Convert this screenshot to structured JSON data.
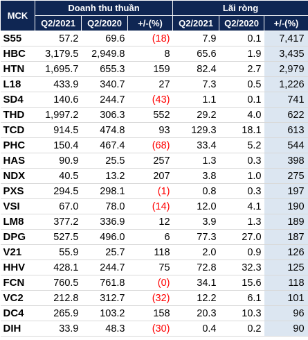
{
  "header": {
    "mck": "MCK",
    "group_revenue": "Doanh thu thuần",
    "group_profit": "Lãi ròng",
    "sub": [
      "Q2/2021",
      "Q2/2020",
      "+/-(%)",
      "Q2/2021",
      "Q2/2020",
      "+/-(%)"
    ]
  },
  "colors": {
    "header_bg": "#0f2653",
    "header_text": "#ffffff",
    "negative": "#ff0000",
    "highlight_col": "#dce6f1"
  },
  "rows": [
    {
      "mck": "S55",
      "rev_2021": "57.2",
      "rev_2020": "69.6",
      "rev_chg": "(18)",
      "rev_neg": true,
      "np_2021": "7.9",
      "np_2020": "0.1",
      "np_chg": "7,417"
    },
    {
      "mck": "HBC",
      "rev_2021": "3,179.5",
      "rev_2020": "2,949.8",
      "rev_chg": "8",
      "rev_neg": false,
      "np_2021": "65.6",
      "np_2020": "1.9",
      "np_chg": "3,435"
    },
    {
      "mck": "HTN",
      "rev_2021": "1,695.7",
      "rev_2020": "655.3",
      "rev_chg": "159",
      "rev_neg": false,
      "np_2021": "82.4",
      "np_2020": "2.7",
      "np_chg": "2,979"
    },
    {
      "mck": "L18",
      "rev_2021": "433.9",
      "rev_2020": "340.7",
      "rev_chg": "27",
      "rev_neg": false,
      "np_2021": "7.3",
      "np_2020": "0.5",
      "np_chg": "1,226"
    },
    {
      "mck": "SD4",
      "rev_2021": "140.6",
      "rev_2020": "244.7",
      "rev_chg": "(43)",
      "rev_neg": true,
      "np_2021": "1.1",
      "np_2020": "0.1",
      "np_chg": "741"
    },
    {
      "mck": "THD",
      "rev_2021": "1,997.2",
      "rev_2020": "306.3",
      "rev_chg": "552",
      "rev_neg": false,
      "np_2021": "29.2",
      "np_2020": "4.0",
      "np_chg": "622"
    },
    {
      "mck": "TCD",
      "rev_2021": "914.5",
      "rev_2020": "474.8",
      "rev_chg": "93",
      "rev_neg": false,
      "np_2021": "129.3",
      "np_2020": "18.1",
      "np_chg": "613"
    },
    {
      "mck": "PHC",
      "rev_2021": "150.4",
      "rev_2020": "467.4",
      "rev_chg": "(68)",
      "rev_neg": true,
      "np_2021": "33.4",
      "np_2020": "5.2",
      "np_chg": "544"
    },
    {
      "mck": "HAS",
      "rev_2021": "90.9",
      "rev_2020": "25.5",
      "rev_chg": "257",
      "rev_neg": false,
      "np_2021": "1.3",
      "np_2020": "0.3",
      "np_chg": "398"
    },
    {
      "mck": "NDX",
      "rev_2021": "40.5",
      "rev_2020": "13.2",
      "rev_chg": "207",
      "rev_neg": false,
      "np_2021": "3.8",
      "np_2020": "1.0",
      "np_chg": "275"
    },
    {
      "mck": "PXS",
      "rev_2021": "294.5",
      "rev_2020": "298.1",
      "rev_chg": "(1)",
      "rev_neg": true,
      "np_2021": "0.8",
      "np_2020": "0.3",
      "np_chg": "197"
    },
    {
      "mck": "VSI",
      "rev_2021": "67.0",
      "rev_2020": "78.0",
      "rev_chg": "(14)",
      "rev_neg": true,
      "np_2021": "12.0",
      "np_2020": "4.1",
      "np_chg": "190"
    },
    {
      "mck": "LM8",
      "rev_2021": "377.2",
      "rev_2020": "336.9",
      "rev_chg": "12",
      "rev_neg": false,
      "np_2021": "3.9",
      "np_2020": "1.3",
      "np_chg": "189"
    },
    {
      "mck": "DPG",
      "rev_2021": "527.5",
      "rev_2020": "496.0",
      "rev_chg": "6",
      "rev_neg": false,
      "np_2021": "77.3",
      "np_2020": "27.0",
      "np_chg": "187"
    },
    {
      "mck": "V21",
      "rev_2021": "55.9",
      "rev_2020": "25.7",
      "rev_chg": "118",
      "rev_neg": false,
      "np_2021": "2.0",
      "np_2020": "0.9",
      "np_chg": "126"
    },
    {
      "mck": "HHV",
      "rev_2021": "428.1",
      "rev_2020": "244.7",
      "rev_chg": "75",
      "rev_neg": false,
      "np_2021": "72.8",
      "np_2020": "32.3",
      "np_chg": "125"
    },
    {
      "mck": "FCN",
      "rev_2021": "760.5",
      "rev_2020": "761.8",
      "rev_chg": "(0)",
      "rev_neg": true,
      "np_2021": "34.1",
      "np_2020": "15.6",
      "np_chg": "118"
    },
    {
      "mck": "VC2",
      "rev_2021": "212.8",
      "rev_2020": "312.7",
      "rev_chg": "(32)",
      "rev_neg": true,
      "np_2021": "12.2",
      "np_2020": "6.1",
      "np_chg": "101"
    },
    {
      "mck": "DC4",
      "rev_2021": "265.9",
      "rev_2020": "103.2",
      "rev_chg": "158",
      "rev_neg": false,
      "np_2021": "20.3",
      "np_2020": "10.3",
      "np_chg": "96"
    },
    {
      "mck": "DIH",
      "rev_2021": "33.9",
      "rev_2020": "48.3",
      "rev_chg": "(30)",
      "rev_neg": true,
      "np_2021": "0.4",
      "np_2020": "0.2",
      "np_chg": "90"
    }
  ]
}
